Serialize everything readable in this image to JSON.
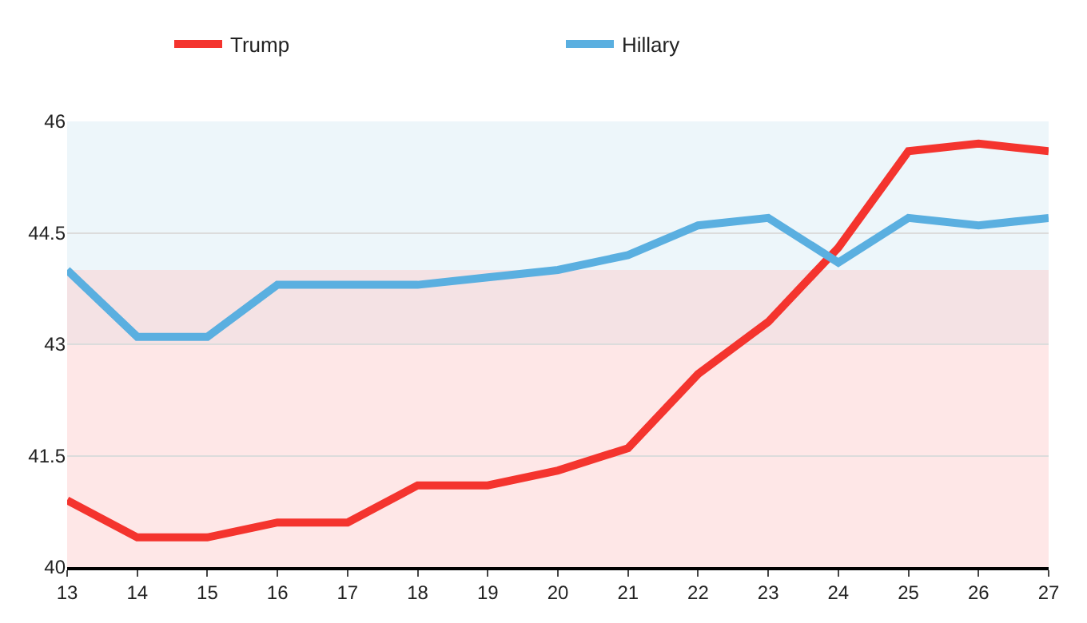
{
  "chart_data": {
    "type": "line",
    "x": [
      13,
      14,
      15,
      16,
      17,
      18,
      19,
      20,
      21,
      22,
      23,
      24,
      25,
      26,
      27
    ],
    "series": [
      {
        "name": "Trump",
        "color": "#f4342e",
        "values": [
          40.9,
          40.4,
          40.4,
          40.6,
          40.6,
          41.1,
          41.1,
          41.3,
          41.6,
          42.6,
          43.3,
          44.3,
          45.6,
          45.7,
          45.6
        ]
      },
      {
        "name": "Hillary",
        "color": "#5aafe0",
        "values": [
          44.0,
          43.1,
          43.1,
          43.8,
          43.8,
          43.8,
          43.9,
          44.0,
          44.2,
          44.6,
          44.7,
          44.1,
          44.7,
          44.6,
          44.7
        ]
      }
    ],
    "xlim": [
      13,
      27
    ],
    "xticks": [
      13,
      14,
      15,
      16,
      17,
      18,
      19,
      20,
      21,
      22,
      23,
      24,
      25,
      26,
      27
    ],
    "ylim": [
      40,
      46
    ],
    "yticks": [
      40,
      41.5,
      43,
      44.5,
      46
    ],
    "bands": [
      {
        "axis": "y",
        "from": 43,
        "to": 46,
        "color": "#d8ecf4"
      },
      {
        "axis": "y",
        "from": 40,
        "to": 44,
        "color": "#fccaca"
      }
    ],
    "grid": "y",
    "legend": "top",
    "marker": "none",
    "line_style": "solid"
  }
}
